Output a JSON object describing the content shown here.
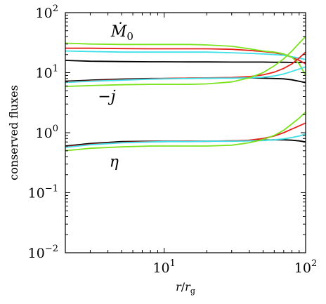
{
  "chart_data": {
    "type": "line",
    "xscale": "log",
    "yscale": "log",
    "xlim": [
      2,
      100
    ],
    "ylim": [
      0.01,
      100
    ],
    "xlabel": {
      "var": "r",
      "sub": "g"
    },
    "ylabel": "conserved fluxes",
    "grid": false,
    "xticks": [
      {
        "value": 10,
        "base": "10",
        "exp": "1"
      },
      {
        "value": 100,
        "base": "10",
        "exp": "2"
      }
    ],
    "yticks": [
      {
        "value": 0.01,
        "base": "10",
        "exp": "−2"
      },
      {
        "value": 0.1,
        "base": "10",
        "exp": "−1"
      },
      {
        "value": 1,
        "base": "10",
        "exp": "0"
      },
      {
        "value": 10,
        "base": "10",
        "exp": "1"
      },
      {
        "value": 100,
        "base": "10",
        "exp": "2"
      }
    ],
    "annotations": [
      {
        "text": "Ṁ0",
        "main": "Ṁ",
        "sub": "0",
        "x": 4.2,
        "y": 40
      },
      {
        "text": "−j",
        "main": "−j",
        "sub": "",
        "x": 3.4,
        "y": 3.3
      },
      {
        "text": "η",
        "main": "η",
        "sub": "",
        "x": 4.1,
        "y": 0.27
      }
    ],
    "series": [
      {
        "color": "#000000",
        "group": "mdot",
        "x": [
          2,
          3,
          5,
          8,
          10,
          15,
          20,
          30,
          40,
          50,
          60,
          70,
          80,
          90,
          100
        ],
        "y": [
          16,
          15.5,
          15.3,
          15.2,
          15.2,
          15.1,
          15.1,
          15,
          15,
          15,
          14.9,
          14.9,
          14.8,
          14.8,
          14.8
        ]
      },
      {
        "color": "#e8211c",
        "group": "mdot",
        "x": [
          2,
          3,
          5,
          8,
          10,
          15,
          20,
          30,
          40,
          50,
          60,
          70,
          80,
          90,
          100
        ],
        "y": [
          25.5,
          25.5,
          25.2,
          25,
          25,
          25,
          25,
          24.5,
          23.5,
          22.5,
          21.5,
          20,
          18,
          16,
          14
        ]
      },
      {
        "color": "#3de0e8",
        "group": "mdot",
        "x": [
          2,
          3,
          5,
          8,
          10,
          15,
          20,
          30,
          40,
          50,
          60,
          70,
          80,
          90,
          100
        ],
        "y": [
          23,
          22.5,
          22,
          22,
          22,
          22,
          22,
          21.5,
          21,
          20.5,
          20,
          19.5,
          18.5,
          17.5,
          16.5
        ]
      },
      {
        "color": "#7be31e",
        "group": "mdot",
        "x": [
          2,
          3,
          5,
          8,
          10,
          15,
          20,
          30,
          40,
          50,
          60,
          70,
          80,
          90,
          100
        ],
        "y": [
          31,
          30,
          29.5,
          29.5,
          29.5,
          29.5,
          29,
          27.5,
          25,
          23,
          22,
          20.5,
          18,
          14,
          9
        ]
      },
      {
        "color": "#000000",
        "group": "j",
        "x": [
          2,
          3,
          5,
          8,
          10,
          15,
          20,
          30,
          40,
          50,
          60,
          70,
          80,
          90,
          100
        ],
        "y": [
          7.2,
          7.5,
          7.8,
          8,
          8,
          8.1,
          8.1,
          8.2,
          8.2,
          8.1,
          8,
          7.9,
          7.6,
          7.2,
          6.8
        ]
      },
      {
        "color": "#e8211c",
        "group": "j",
        "x": [
          2,
          3,
          5,
          8,
          10,
          15,
          20,
          30,
          40,
          50,
          60,
          70,
          80,
          90,
          100
        ],
        "y": [
          7,
          7.3,
          7.6,
          7.9,
          8,
          8.1,
          8.2,
          8.3,
          8.6,
          9.2,
          10.2,
          11.8,
          14,
          17.5,
          22
        ]
      },
      {
        "color": "#3de0e8",
        "group": "j",
        "x": [
          2,
          3,
          5,
          8,
          10,
          15,
          20,
          30,
          40,
          50,
          60,
          70,
          80,
          90,
          100
        ],
        "y": [
          6.9,
          7.2,
          7.5,
          7.8,
          7.9,
          8,
          8.1,
          8.1,
          8.2,
          8.4,
          8.8,
          9.5,
          10.5,
          11.5,
          12.5
        ]
      },
      {
        "color": "#7be31e",
        "group": "j",
        "x": [
          2,
          3,
          5,
          8,
          10,
          15,
          20,
          30,
          40,
          50,
          60,
          70,
          80,
          90,
          100
        ],
        "y": [
          5.9,
          6.1,
          6.3,
          6.4,
          6.4,
          6.4,
          6.5,
          7,
          8.2,
          10,
          13,
          17,
          23,
          31,
          40
        ]
      },
      {
        "color": "#000000",
        "group": "eta",
        "x": [
          2,
          3,
          5,
          8,
          10,
          15,
          20,
          30,
          40,
          50,
          60,
          70,
          80,
          90,
          100
        ],
        "y": [
          0.6,
          0.66,
          0.71,
          0.72,
          0.72,
          0.72,
          0.72,
          0.73,
          0.74,
          0.75,
          0.76,
          0.76,
          0.75,
          0.73,
          0.7
        ]
      },
      {
        "color": "#e8211c",
        "group": "eta",
        "x": [
          2,
          3,
          5,
          8,
          10,
          15,
          20,
          30,
          40,
          50,
          60,
          70,
          80,
          90,
          100
        ],
        "y": [
          0.58,
          0.64,
          0.69,
          0.71,
          0.71,
          0.72,
          0.72,
          0.73,
          0.75,
          0.8,
          0.88,
          1,
          1.15,
          1.3,
          1.45
        ]
      },
      {
        "color": "#3de0e8",
        "group": "eta",
        "x": [
          2,
          3,
          5,
          8,
          10,
          15,
          20,
          30,
          40,
          50,
          60,
          70,
          80,
          90,
          100
        ],
        "y": [
          0.57,
          0.63,
          0.68,
          0.7,
          0.71,
          0.71,
          0.72,
          0.72,
          0.73,
          0.74,
          0.76,
          0.79,
          0.83,
          0.88,
          0.95
        ]
      },
      {
        "color": "#7be31e",
        "group": "eta",
        "x": [
          2,
          3,
          5,
          8,
          10,
          15,
          20,
          30,
          40,
          50,
          60,
          70,
          80,
          90,
          100
        ],
        "y": [
          0.5,
          0.55,
          0.58,
          0.6,
          0.6,
          0.6,
          0.6,
          0.62,
          0.68,
          0.77,
          0.9,
          1.1,
          1.4,
          1.75,
          2.2
        ]
      }
    ]
  }
}
